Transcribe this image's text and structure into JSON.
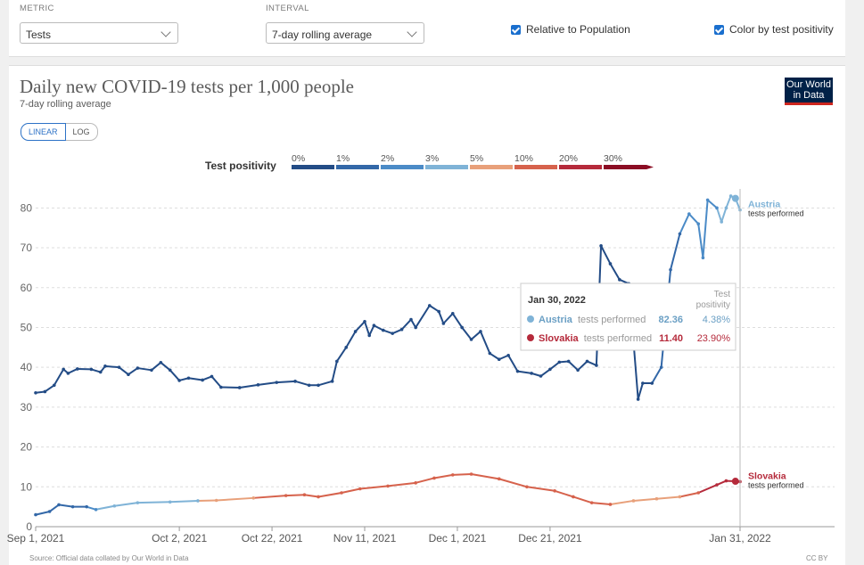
{
  "controls": {
    "metric_label": "METRIC",
    "metric_value": "Tests",
    "interval_label": "INTERVAL",
    "interval_value": "7-day rolling average",
    "relative_label": "Relative to Population",
    "color_label": "Color by test positivity"
  },
  "logo": {
    "line1": "Our World",
    "line2": "in Data"
  },
  "footer": {
    "left": "Source: Official data collated by Our World in Data",
    "right": "CC BY"
  },
  "scale": {
    "linear": "LINEAR",
    "log": "LOG"
  },
  "legend": {
    "title": "Test positivity",
    "bins": [
      {
        "label": "0%",
        "color": "#234c86"
      },
      {
        "label": "1%",
        "color": "#3368a8"
      },
      {
        "label": "2%",
        "color": "#4b8bc7"
      },
      {
        "label": "3%",
        "color": "#7fb3d7"
      },
      {
        "label": "5%",
        "color": "#e8a07a"
      },
      {
        "label": "10%",
        "color": "#d6624c"
      },
      {
        "label": "20%",
        "color": "#b52a3b"
      },
      {
        "label": "30%",
        "color": "#8b0d24"
      }
    ]
  },
  "tooltip": {
    "date": "Jan 30, 2022",
    "col_header1": "Test",
    "col_header2": "positivity",
    "rows": [
      {
        "country": "Austria",
        "metric": "tests performed",
        "value": "82.36",
        "positivity": "4.38%",
        "color": "#7fb3d7"
      },
      {
        "country": "Slovakia",
        "metric": "tests performed",
        "value": "11.40",
        "positivity": "23.90%",
        "color": "#b52a3b"
      }
    ]
  },
  "chart_data": {
    "type": "line",
    "title": "Daily new COVID-19 tests per 1,000 people",
    "subtitle": "7-day rolling average",
    "ylim": [
      0,
      85
    ],
    "yticks": [
      0,
      10,
      20,
      30,
      40,
      50,
      60,
      70,
      80
    ],
    "xlim": [
      "2021-09-01",
      "2022-01-31"
    ],
    "xticks": [
      {
        "date": "2021-09-01",
        "label": "Sep 1, 2021"
      },
      {
        "date": "2021-10-02",
        "label": "Oct 2, 2021"
      },
      {
        "date": "2021-10-22",
        "label": "Oct 22, 2021"
      },
      {
        "date": "2021-11-11",
        "label": "Nov 11, 2021"
      },
      {
        "date": "2021-12-01",
        "label": "Dec 1, 2021"
      },
      {
        "date": "2021-12-21",
        "label": "Dec 21, 2021"
      },
      {
        "date": "2022-01-31",
        "label": "Jan 31, 2022"
      }
    ],
    "grid": true,
    "series": [
      {
        "name": "Austria",
        "label_sub": "tests performed",
        "color": "#7fb3d7",
        "points": [
          [
            "2021-09-01",
            33.6,
            "#234c86"
          ],
          [
            "2021-09-03",
            33.9,
            "#234c86"
          ],
          [
            "2021-09-05",
            35.5,
            "#234c86"
          ],
          [
            "2021-09-07",
            39.5,
            "#234c86"
          ],
          [
            "2021-09-08",
            38.5,
            "#234c86"
          ],
          [
            "2021-09-10",
            39.6,
            "#234c86"
          ],
          [
            "2021-09-13",
            39.5,
            "#234c86"
          ],
          [
            "2021-09-15",
            38.8,
            "#234c86"
          ],
          [
            "2021-09-16",
            40.3,
            "#234c86"
          ],
          [
            "2021-09-19",
            40.0,
            "#234c86"
          ],
          [
            "2021-09-21",
            38.2,
            "#234c86"
          ],
          [
            "2021-09-23",
            39.8,
            "#234c86"
          ],
          [
            "2021-09-26",
            39.3,
            "#234c86"
          ],
          [
            "2021-09-28",
            41.2,
            "#234c86"
          ],
          [
            "2021-09-30",
            39.3,
            "#234c86"
          ],
          [
            "2021-10-02",
            36.7,
            "#234c86"
          ],
          [
            "2021-10-04",
            37.3,
            "#234c86"
          ],
          [
            "2021-10-07",
            36.8,
            "#234c86"
          ],
          [
            "2021-10-09",
            37.7,
            "#234c86"
          ],
          [
            "2021-10-11",
            35.0,
            "#234c86"
          ],
          [
            "2021-10-15",
            34.9,
            "#234c86"
          ],
          [
            "2021-10-19",
            35.6,
            "#234c86"
          ],
          [
            "2021-10-23",
            36.2,
            "#234c86"
          ],
          [
            "2021-10-27",
            36.5,
            "#234c86"
          ],
          [
            "2021-10-30",
            35.5,
            "#234c86"
          ],
          [
            "2021-11-01",
            35.5,
            "#234c86"
          ],
          [
            "2021-11-04",
            36.5,
            "#234c86"
          ],
          [
            "2021-11-05",
            41.5,
            "#234c86"
          ],
          [
            "2021-11-07",
            45.0,
            "#234c86"
          ],
          [
            "2021-11-09",
            49.0,
            "#234c86"
          ],
          [
            "2021-11-11",
            51.5,
            "#234c86"
          ],
          [
            "2021-11-12",
            48.0,
            "#234c86"
          ],
          [
            "2021-11-13",
            50.5,
            "#234c86"
          ],
          [
            "2021-11-15",
            49.3,
            "#234c86"
          ],
          [
            "2021-11-17",
            48.5,
            "#234c86"
          ],
          [
            "2021-11-19",
            49.5,
            "#234c86"
          ],
          [
            "2021-11-21",
            52.0,
            "#234c86"
          ],
          [
            "2021-11-22",
            50.0,
            "#234c86"
          ],
          [
            "2021-11-25",
            55.5,
            "#234c86"
          ],
          [
            "2021-11-27",
            54.0,
            "#234c86"
          ],
          [
            "2021-11-28",
            51.0,
            "#234c86"
          ],
          [
            "2021-11-30",
            53.5,
            "#234c86"
          ],
          [
            "2021-12-02",
            50.0,
            "#234c86"
          ],
          [
            "2021-12-04",
            47.0,
            "#234c86"
          ],
          [
            "2021-12-06",
            49.0,
            "#234c86"
          ],
          [
            "2021-12-08",
            43.5,
            "#234c86"
          ],
          [
            "2021-12-10",
            42.0,
            "#234c86"
          ],
          [
            "2021-12-12",
            43.0,
            "#234c86"
          ],
          [
            "2021-12-14",
            39.0,
            "#234c86"
          ],
          [
            "2021-12-17",
            38.5,
            "#234c86"
          ],
          [
            "2021-12-19",
            37.8,
            "#234c86"
          ],
          [
            "2021-12-21",
            39.5,
            "#234c86"
          ],
          [
            "2021-12-23",
            41.3,
            "#234c86"
          ],
          [
            "2021-12-25",
            41.5,
            "#234c86"
          ],
          [
            "2021-12-27",
            39.3,
            "#234c86"
          ],
          [
            "2021-12-29",
            41.5,
            "#234c86"
          ],
          [
            "2021-12-31",
            40.5,
            "#234c86"
          ],
          [
            "2022-01-01",
            70.5,
            "#234c86"
          ],
          [
            "2022-01-03",
            66.0,
            "#234c86"
          ],
          [
            "2022-01-05",
            62.0,
            "#234c86"
          ],
          [
            "2022-01-07",
            61.0,
            "#234c86"
          ],
          [
            "2022-01-09",
            32.0,
            "#234c86"
          ],
          [
            "2022-01-10",
            36.0,
            "#234c86"
          ],
          [
            "2022-01-12",
            36.0,
            "#234c86"
          ],
          [
            "2022-01-14",
            40.0,
            "#3368a8"
          ],
          [
            "2022-01-16",
            64.5,
            "#3368a8"
          ],
          [
            "2022-01-18",
            73.5,
            "#3368a8"
          ],
          [
            "2022-01-20",
            78.5,
            "#4b8bc7"
          ],
          [
            "2022-01-22",
            76.0,
            "#4b8bc7"
          ],
          [
            "2022-01-23",
            67.5,
            "#4b8bc7"
          ],
          [
            "2022-01-24",
            82.0,
            "#4b8bc7"
          ],
          [
            "2022-01-26",
            80.0,
            "#4b8bc7"
          ],
          [
            "2022-01-27",
            76.5,
            "#7fb3d7"
          ],
          [
            "2022-01-28",
            80.0,
            "#7fb3d7"
          ],
          [
            "2022-01-29",
            83.0,
            "#7fb3d7"
          ],
          [
            "2022-01-30",
            82.4,
            "#7fb3d7"
          ],
          [
            "2022-01-31",
            79.5,
            "#7fb3d7"
          ]
        ]
      },
      {
        "name": "Slovakia",
        "label_sub": "tests performed",
        "color": "#b52a3b",
        "points": [
          [
            "2021-09-01",
            3.0,
            "#3368a8"
          ],
          [
            "2021-09-04",
            3.8,
            "#3368a8"
          ],
          [
            "2021-09-06",
            5.5,
            "#3368a8"
          ],
          [
            "2021-09-09",
            5.0,
            "#3368a8"
          ],
          [
            "2021-09-12",
            5.0,
            "#3368a8"
          ],
          [
            "2021-09-14",
            4.3,
            "#4b8bc7"
          ],
          [
            "2021-09-18",
            5.2,
            "#7fb3d7"
          ],
          [
            "2021-09-23",
            6.0,
            "#7fb3d7"
          ],
          [
            "2021-09-30",
            6.2,
            "#7fb3d7"
          ],
          [
            "2021-10-06",
            6.5,
            "#7fb3d7"
          ],
          [
            "2021-10-10",
            6.6,
            "#e8a07a"
          ],
          [
            "2021-10-18",
            7.2,
            "#e8a07a"
          ],
          [
            "2021-10-25",
            7.8,
            "#d6624c"
          ],
          [
            "2021-10-29",
            8.0,
            "#d6624c"
          ],
          [
            "2021-11-01",
            7.5,
            "#d6624c"
          ],
          [
            "2021-11-06",
            8.5,
            "#d6624c"
          ],
          [
            "2021-11-10",
            9.5,
            "#d6624c"
          ],
          [
            "2021-11-16",
            10.2,
            "#d6624c"
          ],
          [
            "2021-11-22",
            11.0,
            "#d6624c"
          ],
          [
            "2021-11-26",
            12.2,
            "#d6624c"
          ],
          [
            "2021-11-30",
            13.0,
            "#d6624c"
          ],
          [
            "2021-12-04",
            13.2,
            "#d6624c"
          ],
          [
            "2021-12-10",
            12.0,
            "#d6624c"
          ],
          [
            "2021-12-16",
            10.0,
            "#d6624c"
          ],
          [
            "2021-12-22",
            9.0,
            "#d6624c"
          ],
          [
            "2021-12-26",
            7.5,
            "#d6624c"
          ],
          [
            "2021-12-30",
            6.0,
            "#d6624c"
          ],
          [
            "2022-01-03",
            5.6,
            "#d6624c"
          ],
          [
            "2022-01-08",
            6.5,
            "#e8a07a"
          ],
          [
            "2022-01-13",
            7.0,
            "#e8a07a"
          ],
          [
            "2022-01-18",
            7.5,
            "#e8a07a"
          ],
          [
            "2022-01-22",
            8.5,
            "#d6624c"
          ],
          [
            "2022-01-26",
            10.5,
            "#b52a3b"
          ],
          [
            "2022-01-28",
            11.5,
            "#b52a3b"
          ],
          [
            "2022-01-30",
            11.4,
            "#b52a3b"
          ],
          [
            "2022-01-31",
            11.3,
            "#b52a3b"
          ]
        ]
      }
    ]
  }
}
